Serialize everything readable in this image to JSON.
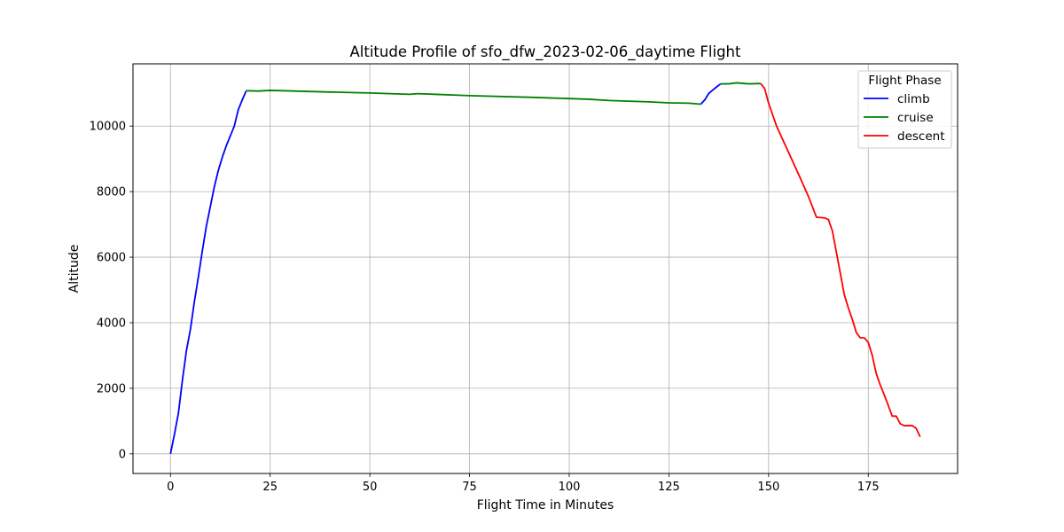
{
  "chart_data": {
    "type": "line",
    "title": "Altitude Profile of sfo_dfw_2023-02-06_daytime Flight",
    "xlabel": "Flight Time in Minutes",
    "ylabel": "Altitude",
    "xlim": [
      -9.4,
      197.4
    ],
    "ylim": [
      -600,
      11900
    ],
    "xticks": [
      0,
      25,
      50,
      75,
      100,
      125,
      150,
      175
    ],
    "yticks": [
      0,
      2000,
      4000,
      6000,
      8000,
      10000
    ],
    "grid": true,
    "legend": {
      "title": "Flight Phase",
      "placement": "top-right"
    },
    "series": [
      {
        "name": "climb",
        "color": "#0000ff",
        "segments": [
          [
            [
              0,
              0
            ],
            [
              1,
              600
            ],
            [
              2,
              1250
            ],
            [
              3,
              2250
            ],
            [
              4,
              3150
            ],
            [
              5,
              3800
            ],
            [
              6,
              4650
            ],
            [
              7,
              5400
            ],
            [
              8,
              6200
            ],
            [
              9,
              6950
            ],
            [
              10,
              7550
            ],
            [
              11,
              8150
            ],
            [
              12,
              8650
            ],
            [
              13,
              9050
            ],
            [
              14,
              9400
            ],
            [
              15,
              9700
            ],
            [
              16,
              10000
            ],
            [
              17,
              10500
            ],
            [
              18,
              10800
            ],
            [
              19,
              11080
            ]
          ],
          [
            [
              133,
              10670
            ],
            [
              134,
              10800
            ],
            [
              135,
              11000
            ],
            [
              136,
              11100
            ],
            [
              137,
              11200
            ],
            [
              138,
              11290
            ]
          ]
        ]
      },
      {
        "name": "cruise",
        "color": "#008000",
        "segments": [
          [
            [
              19,
              11080
            ],
            [
              22,
              11070
            ],
            [
              25,
              11090
            ],
            [
              28,
              11080
            ],
            [
              40,
              11040
            ],
            [
              50,
              11010
            ],
            [
              60,
              10970
            ],
            [
              62,
              10990
            ],
            [
              75,
              10930
            ],
            [
              90,
              10880
            ],
            [
              95,
              10860
            ],
            [
              100,
              10840
            ],
            [
              105,
              10820
            ],
            [
              110,
              10780
            ],
            [
              115,
              10760
            ],
            [
              120,
              10740
            ],
            [
              125,
              10710
            ],
            [
              130,
              10700
            ],
            [
              133,
              10670
            ]
          ],
          [
            [
              138,
              11290
            ],
            [
              140,
              11290
            ],
            [
              142,
              11320
            ],
            [
              145,
              11290
            ],
            [
              148,
              11300
            ]
          ]
        ]
      },
      {
        "name": "descent",
        "color": "#ff0000",
        "segments": [
          [
            [
              148,
              11300
            ],
            [
              149,
              11150
            ],
            [
              150,
              10700
            ],
            [
              152,
              10000
            ],
            [
              155,
              9200
            ],
            [
              158,
              8400
            ],
            [
              160,
              7850
            ],
            [
              162,
              7220
            ],
            [
              164,
              7200
            ],
            [
              165,
              7150
            ],
            [
              166,
              6800
            ],
            [
              167,
              6150
            ],
            [
              168,
              5500
            ],
            [
              169,
              4850
            ],
            [
              170,
              4450
            ],
            [
              171,
              4100
            ],
            [
              172,
              3700
            ],
            [
              173,
              3540
            ],
            [
              174,
              3540
            ],
            [
              175,
              3400
            ],
            [
              176,
              3000
            ],
            [
              177,
              2450
            ],
            [
              178,
              2100
            ],
            [
              179,
              1800
            ],
            [
              180,
              1480
            ],
            [
              181,
              1150
            ],
            [
              182,
              1150
            ],
            [
              183,
              920
            ],
            [
              184,
              860
            ],
            [
              185,
              860
            ],
            [
              186,
              860
            ],
            [
              187,
              780
            ],
            [
              188,
              520
            ]
          ]
        ]
      }
    ]
  }
}
